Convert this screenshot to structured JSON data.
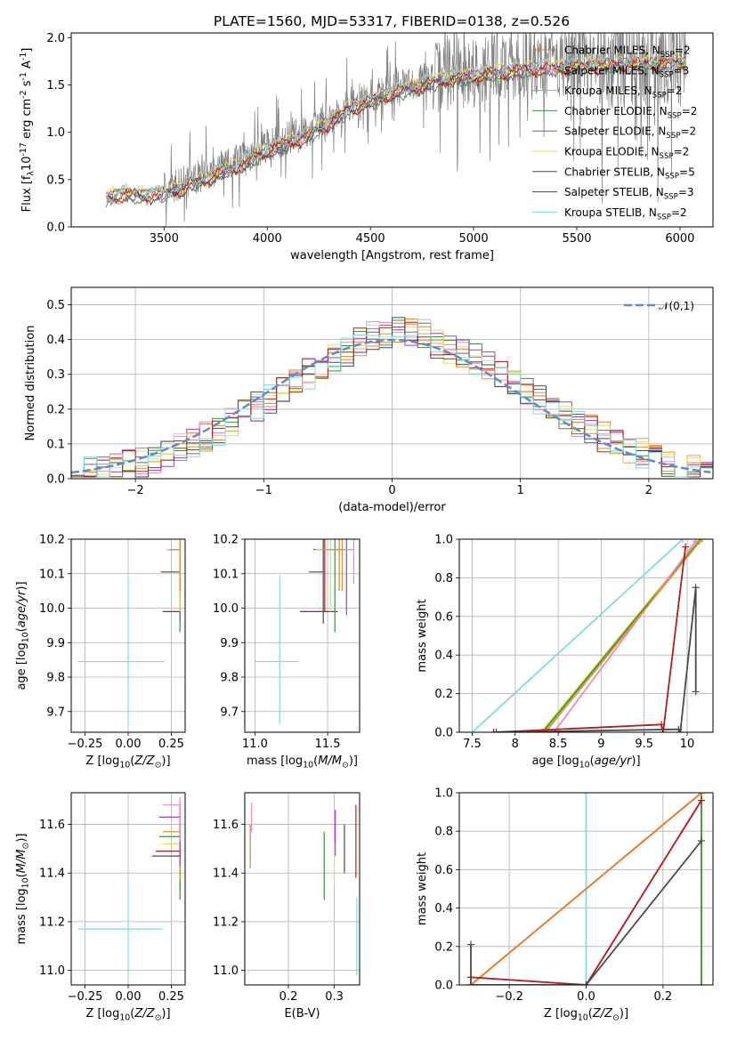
{
  "title": "PLATE=1560, MJD=53317, FIBERID=0138, z=0.526",
  "colors": {
    "Chabrier MILES": "#e87a2c",
    "Salpeter MILES": "#ee88bb",
    "Kroupa MILES": "#d9972a",
    "Chabrier ELODIE": "#3e8f3e",
    "Salpeter ELODIE": "#9b3fbf",
    "Kroupa ELODIE": "#dfe155",
    "Chabrier STELIB": "#4a4a4a",
    "Salpeter STELIB": "#b01e1e",
    "Kroupa STELIB": "#7fdbe0",
    "gauss": "#5b8bd4"
  },
  "legend1": [
    {
      "key": "Chabrier MILES",
      "label": "Chabrier MILES, N$_{SSP}$=2"
    },
    {
      "key": "Salpeter MILES",
      "label": "Salpeter MILES, N$_{SSP}$=3"
    },
    {
      "key": "Kroupa MILES",
      "label": "Kroupa MILES, N$_{SSP}$=2"
    },
    {
      "key": "Chabrier ELODIE",
      "label": "Chabrier ELODIE, N$_{SSP}$=2"
    },
    {
      "key": "Salpeter ELODIE",
      "label": "Salpeter ELODIE, N$_{SSP}$=2"
    },
    {
      "key": "Kroupa ELODIE",
      "label": "Kroupa ELODIE, N$_{SSP}$=2"
    },
    {
      "key": "Chabrier STELIB",
      "label": "Chabrier STELIB, N$_{SSP}$=5"
    },
    {
      "key": "Salpeter STELIB",
      "label": "Salpeter STELIB, N$_{SSP}$=3"
    },
    {
      "key": "Kroupa STELIB",
      "label": "Kroupa STELIB, N$_{SSP}$=2"
    }
  ],
  "chart_data": [
    {
      "id": "spectrum",
      "type": "line",
      "xlabel": "wavelength [Angstrom, rest frame]",
      "ylabel": "Flux [f$_\\lambda$10$^{-17}$ erg cm$^{-2}$ s$^{-1}$ A$^{-1}$]",
      "xlim": [
        3050,
        6160
      ],
      "ylim": [
        0,
        2.05
      ],
      "xticks": [
        3500,
        4000,
        4500,
        5000,
        5500,
        6000
      ],
      "yticks": [
        0.0,
        0.5,
        1.0,
        1.5,
        2.0
      ],
      "data_continuum": {
        "x": [
          3220,
          3300,
          3400,
          3500,
          3600,
          3700,
          3800,
          3900,
          4000,
          4100,
          4200,
          4300,
          4400,
          4500,
          4600,
          4700,
          4800,
          4900,
          5000,
          5100,
          5200,
          5300,
          5400,
          5500,
          5600,
          5700,
          5800,
          5900,
          6000,
          6030
        ],
        "y": [
          0.35,
          0.4,
          0.38,
          0.4,
          0.48,
          0.56,
          0.65,
          0.74,
          0.86,
          0.93,
          1.02,
          1.15,
          1.3,
          1.38,
          1.46,
          1.52,
          1.58,
          1.62,
          1.64,
          1.68,
          1.7,
          1.72,
          1.73,
          1.75,
          1.76,
          1.76,
          1.77,
          1.78,
          1.78,
          1.78
        ]
      }
    },
    {
      "id": "residuals",
      "type": "histogram",
      "xlabel": "(data-model)/error",
      "ylabel": "Normed distribution",
      "xlim": [
        -2.5,
        2.5
      ],
      "ylim": [
        0,
        0.55
      ],
      "xticks": [
        -2,
        -1,
        0,
        1,
        2
      ],
      "yticks": [
        0.0,
        0.1,
        0.2,
        0.3,
        0.4,
        0.5
      ],
      "bin_width": 0.1,
      "reference": {
        "label": "$\\mathcal{N}(0,1)$",
        "mean": 0,
        "sigma": 1
      }
    },
    {
      "id": "age-vs-Z",
      "type": "errorbar",
      "xlabel": "Z [log$_{10}$($Z/Z_\\odot$)]",
      "ylabel": "age  [log$_{10}$($age/yr$)]",
      "xlim": [
        -0.33,
        0.33
      ],
      "ylim": [
        9.64,
        10.2
      ],
      "xticks": [
        -0.25,
        0.0,
        0.25
      ],
      "xticklabels": [
        "−0.25",
        "0.00",
        "0.25"
      ],
      "yticks": [
        9.7,
        9.8,
        9.9,
        10.0,
        10.1,
        10.2
      ],
      "points": [
        {
          "key": "Kroupa STELIB",
          "x": 0.0,
          "xerr": [
            0.29,
            0.21
          ],
          "y": 9.845,
          "yerr": [
            0.18,
            0.25
          ]
        },
        {
          "key": "Salpeter STELIB",
          "x": 0.3,
          "xerr": [
            0.1,
            0.0
          ],
          "y": 9.99,
          "yerr": [
            0.0,
            0.21
          ]
        },
        {
          "key": "Chabrier STELIB",
          "x": 0.3,
          "xerr": [
            0.11,
            0.0
          ],
          "y": 10.105,
          "yerr": [
            0.15,
            0.1
          ]
        },
        {
          "key": "Chabrier ELODIE",
          "x": 0.3,
          "xerr": [
            0.08,
            0.0
          ],
          "y": 10.17,
          "yerr": [
            0.24,
            0.03
          ]
        },
        {
          "key": "Salpeter ELODIE",
          "x": 0.3,
          "xerr": [
            0.07,
            0.0
          ],
          "y": 10.17,
          "yerr": [
            0.19,
            0.03
          ]
        },
        {
          "key": "Kroupa ELODIE",
          "x": 0.3,
          "xerr": [
            0.08,
            0.0
          ],
          "y": 10.17,
          "yerr": [
            0.18,
            0.03
          ]
        },
        {
          "key": "Chabrier MILES",
          "x": 0.3,
          "xerr": [
            0.06,
            0.0
          ],
          "y": 10.17,
          "yerr": [
            0.12,
            0.03
          ]
        },
        {
          "key": "Salpeter MILES",
          "x": 0.3,
          "xerr": [
            0.05,
            0.0
          ],
          "y": 10.17,
          "yerr": [
            0.1,
            0.03
          ]
        },
        {
          "key": "Kroupa MILES",
          "x": 0.3,
          "xerr": [
            0.06,
            0.0
          ],
          "y": 10.17,
          "yerr": [
            0.12,
            0.03
          ]
        }
      ]
    },
    {
      "id": "age-vs-mass",
      "type": "errorbar",
      "xlabel": "mass [log$_{10}$($M/M_\\odot$)]",
      "ylabel": "",
      "xlim": [
        10.93,
        11.72
      ],
      "ylim": [
        9.64,
        10.2
      ],
      "xticks": [
        11.0,
        11.5
      ],
      "xticklabels": [
        "11.0",
        "11.5"
      ],
      "yticks": [
        9.7,
        9.8,
        9.9,
        10.0,
        10.1,
        10.2
      ],
      "points": [
        {
          "key": "Kroupa STELIB",
          "x": 11.17,
          "xerr": [
            0.17,
            0.13
          ],
          "y": 9.845,
          "yerr": [
            0.18,
            0.25
          ]
        },
        {
          "key": "Salpeter STELIB",
          "x": 11.48,
          "xerr": [
            0.17,
            0.09
          ],
          "y": 9.99,
          "yerr": [
            0.0,
            0.21
          ]
        },
        {
          "key": "Chabrier STELIB",
          "x": 11.47,
          "xerr": [
            0.1,
            0.0
          ],
          "y": 10.105,
          "yerr": [
            0.15,
            0.1
          ]
        },
        {
          "key": "Chabrier ELODIE",
          "x": 11.55,
          "xerr": [
            0.15,
            0.0
          ],
          "y": 10.17,
          "yerr": [
            0.24,
            0.03
          ]
        },
        {
          "key": "Salpeter ELODIE",
          "x": 11.63,
          "xerr": [
            0.2,
            0.0
          ],
          "y": 10.17,
          "yerr": [
            0.19,
            0.03
          ]
        },
        {
          "key": "Kroupa ELODIE",
          "x": 11.52,
          "xerr": [
            0.1,
            0.0
          ],
          "y": 10.17,
          "yerr": [
            0.18,
            0.03
          ]
        },
        {
          "key": "Chabrier MILES",
          "x": 11.58,
          "xerr": [
            0.12,
            0.0
          ],
          "y": 10.17,
          "yerr": [
            0.12,
            0.03
          ]
        },
        {
          "key": "Salpeter MILES",
          "x": 11.68,
          "xerr": [
            0.17,
            0.0
          ],
          "y": 10.17,
          "yerr": [
            0.1,
            0.03
          ]
        },
        {
          "key": "Kroupa MILES",
          "x": 11.6,
          "xerr": [
            0.13,
            0.0
          ],
          "y": 10.17,
          "yerr": [
            0.12,
            0.03
          ]
        }
      ]
    },
    {
      "id": "mass-weight-vs-age",
      "type": "line",
      "xlabel": "age  [log$_{10}$($age/yr$)]",
      "ylabel": "mass weight",
      "xlim": [
        7.35,
        10.3
      ],
      "ylim": [
        0,
        1.0
      ],
      "xticks": [
        7.5,
        8.0,
        8.5,
        9.0,
        9.5,
        10.0
      ],
      "yticks": [
        0.0,
        0.2,
        0.4,
        0.6,
        0.8,
        1.0
      ],
      "series": [
        {
          "key": "Kroupa STELIB",
          "x": [
            7.5,
            9.95
          ],
          "y": [
            0.0,
            1.0
          ]
        },
        {
          "key": "Kroupa ELODIE",
          "x": [
            8.3,
            10.15
          ],
          "y": [
            0.0,
            1.0
          ]
        },
        {
          "key": "Chabrier ELODIE",
          "x": [
            8.32,
            10.14
          ],
          "y": [
            0.0,
            0.99
          ]
        },
        {
          "key": "Salpeter MILES",
          "x": [
            8.45,
            10.1
          ],
          "y": [
            0.0,
            0.99
          ]
        },
        {
          "key": "Kroupa MILES",
          "x": [
            8.35,
            10.17
          ],
          "y": [
            0.0,
            1.0
          ]
        },
        {
          "key": "Salpeter STELIB",
          "x": [
            7.75,
            9.7,
            9.72,
            9.98
          ],
          "y": [
            0.0,
            0.04,
            0.0,
            0.96
          ]
        },
        {
          "key": "Chabrier STELIB",
          "x": [
            7.78,
            9.9,
            9.92,
            10.1,
            10.1
          ],
          "y": [
            0.0,
            0.015,
            0.0,
            0.75,
            0.21
          ]
        }
      ]
    },
    {
      "id": "mass-vs-Z",
      "type": "errorbar",
      "xlabel": "Z [log$_{10}$($Z/Z_\\odot$)]",
      "ylabel": "mass [log$_{10}$($M/M_\\odot$)]",
      "xlim": [
        -0.33,
        0.33
      ],
      "ylim": [
        10.94,
        11.73
      ],
      "xticks": [
        -0.25,
        0.0,
        0.25
      ],
      "xticklabels": [
        "−0.25",
        "0.00",
        "0.25"
      ],
      "yticks": [
        11.0,
        11.2,
        11.4,
        11.6
      ],
      "points": [
        {
          "key": "Kroupa STELIB",
          "x": 0.0,
          "xerr": [
            0.29,
            0.2
          ],
          "y": 11.17,
          "yerr": [
            0.2,
            0.2
          ]
        },
        {
          "key": "Chabrier STELIB",
          "x": 0.3,
          "xerr": [
            0.16,
            0.0
          ],
          "y": 11.47,
          "yerr": [
            0.14,
            0.07
          ]
        },
        {
          "key": "Salpeter STELIB",
          "x": 0.3,
          "xerr": [
            0.14,
            0.0
          ],
          "y": 11.49,
          "yerr": [
            0.1,
            0.1
          ]
        },
        {
          "key": "Kroupa ELODIE",
          "x": 0.3,
          "xerr": [
            0.1,
            0.0
          ],
          "y": 11.52,
          "yerr": [
            0.18,
            0.1
          ]
        },
        {
          "key": "Chabrier ELODIE",
          "x": 0.3,
          "xerr": [
            0.12,
            0.0
          ],
          "y": 11.55,
          "yerr": [
            0.26,
            0.1
          ]
        },
        {
          "key": "Kroupa MILES",
          "x": 0.3,
          "xerr": [
            0.1,
            0.0
          ],
          "y": 11.57,
          "yerr": [
            0.2,
            0.1
          ]
        },
        {
          "key": "Salpeter ELODIE",
          "x": 0.3,
          "xerr": [
            0.12,
            0.0
          ],
          "y": 11.63,
          "yerr": [
            0.2,
            0.05
          ]
        },
        {
          "key": "Salpeter MILES",
          "x": 0.3,
          "xerr": [
            0.1,
            0.0
          ],
          "y": 11.68,
          "yerr": [
            0.15,
            0.03
          ]
        }
      ]
    },
    {
      "id": "mass-vs-EBV",
      "type": "errorbar",
      "xlabel": "E(B-V)",
      "ylabel": "",
      "xlim": [
        0.105,
        0.355
      ],
      "ylim": [
        10.94,
        11.73
      ],
      "xticks": [
        0.2,
        0.3
      ],
      "xticklabels": [
        "0.2",
        "0.3"
      ],
      "yticks": [
        11.0,
        11.2,
        11.4,
        11.6
      ],
      "points": [
        {
          "key": "Chabrier MILES",
          "x": 0.117,
          "xerr": [
            0,
            0
          ],
          "y": 11.52,
          "yerr": [
            0.1,
            0.08
          ]
        },
        {
          "key": "Salpeter MILES",
          "x": 0.12,
          "xerr": [
            0,
            0
          ],
          "y": 11.6,
          "yerr": [
            0.03,
            0.09
          ]
        },
        {
          "key": "Chabrier ELODIE",
          "x": 0.278,
          "xerr": [
            0,
            0
          ],
          "y": 11.43,
          "yerr": [
            0.14,
            0.14
          ]
        },
        {
          "key": "Salpeter ELODIE",
          "x": 0.302,
          "xerr": [
            0,
            0
          ],
          "y": 11.56,
          "yerr": [
            0.09,
            0.1
          ]
        },
        {
          "key": "Kroupa ELODIE",
          "x": 0.3,
          "xerr": [
            0,
            0
          ],
          "y": 11.44,
          "yerr": [
            0.09,
            0.08
          ]
        },
        {
          "key": "Chabrier STELIB",
          "x": 0.322,
          "xerr": [
            0,
            0
          ],
          "y": 11.5,
          "yerr": [
            0.1,
            0.1
          ]
        },
        {
          "key": "Salpeter STELIB",
          "x": 0.347,
          "xerr": [
            0,
            0
          ],
          "y": 11.53,
          "yerr": [
            0.15,
            0.15
          ]
        },
        {
          "key": "Kroupa STELIB",
          "x": 0.349,
          "xerr": [
            0,
            0
          ],
          "y": 11.15,
          "yerr": [
            0.17,
            0.15
          ]
        }
      ]
    },
    {
      "id": "mass-weight-vs-Z",
      "type": "line",
      "xlabel": "Z [log$_{10}$($Z/Z_\\odot$)]",
      "ylabel": "mass weight",
      "xlim": [
        -0.33,
        0.33
      ],
      "ylim": [
        0,
        1.0
      ],
      "xticks": [
        -0.2,
        0.0,
        0.2
      ],
      "xticklabels": [
        "−0.2",
        "0.0",
        "0.2"
      ],
      "yticks": [
        0.0,
        0.2,
        0.4,
        0.6,
        0.8,
        1.0
      ],
      "series": [
        {
          "key": "Kroupa STELIB",
          "x": [
            0.0,
            0.0
          ],
          "y": [
            0.0,
            1.0
          ]
        },
        {
          "key": "Kroupa ELODIE",
          "x": [
            0.3,
            0.3
          ],
          "y": [
            0.0,
            1.0
          ]
        },
        {
          "key": "Chabrier ELODIE",
          "x": [
            0.3,
            0.3
          ],
          "y": [
            0.0,
            1.0
          ]
        },
        {
          "key": "Salpeter MILES",
          "x": [
            -0.3,
            0.0,
            0.3
          ],
          "y": [
            0.04,
            0.0,
            0.96
          ]
        },
        {
          "key": "Kroupa MILES",
          "x": [
            -0.3,
            0.3
          ],
          "y": [
            0.0,
            1.0
          ]
        },
        {
          "key": "Chabrier MILES",
          "x": [
            -0.3,
            0.3
          ],
          "y": [
            0.0,
            1.0
          ]
        },
        {
          "key": "Salpeter STELIB",
          "x": [
            -0.3,
            0.0,
            0.3
          ],
          "y": [
            0.04,
            0.0,
            0.96
          ]
        },
        {
          "key": "Chabrier STELIB",
          "x": [
            -0.3,
            -0.3,
            0.0,
            0.3
          ],
          "y": [
            0.21,
            0.0,
            0.0,
            0.75
          ]
        }
      ]
    }
  ]
}
